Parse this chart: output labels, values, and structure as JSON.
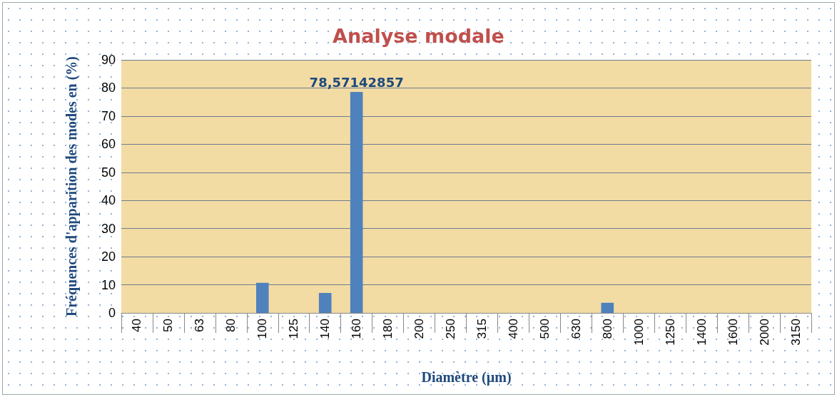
{
  "chart_data": {
    "type": "bar",
    "title": "Analyse modale",
    "xlabel": "Diamètre (µm)",
    "ylabel": "Fréquences d'apparition des modes en (%)",
    "categories": [
      "40",
      "50",
      "63",
      "80",
      "100",
      "125",
      "140",
      "160",
      "180",
      "200",
      "250",
      "315",
      "400",
      "500",
      "630",
      "800",
      "1000",
      "1250",
      "1400",
      "1600",
      "2000",
      "3150"
    ],
    "values": [
      0,
      0,
      0,
      0,
      10.7,
      0,
      7.1,
      78.57142857,
      0,
      0,
      0,
      0,
      0,
      0,
      0,
      3.6,
      0,
      0,
      0,
      0,
      0,
      0
    ],
    "value_labels": [
      null,
      null,
      null,
      null,
      null,
      null,
      null,
      "78,57142857",
      null,
      null,
      null,
      null,
      null,
      null,
      null,
      null,
      null,
      null,
      null,
      null,
      null,
      null
    ],
    "color": "#4f81bd",
    "ylim": [
      0,
      90
    ],
    "yticks": [
      0,
      10,
      20,
      30,
      40,
      50,
      60,
      70,
      80,
      90
    ],
    "grid": "y"
  }
}
